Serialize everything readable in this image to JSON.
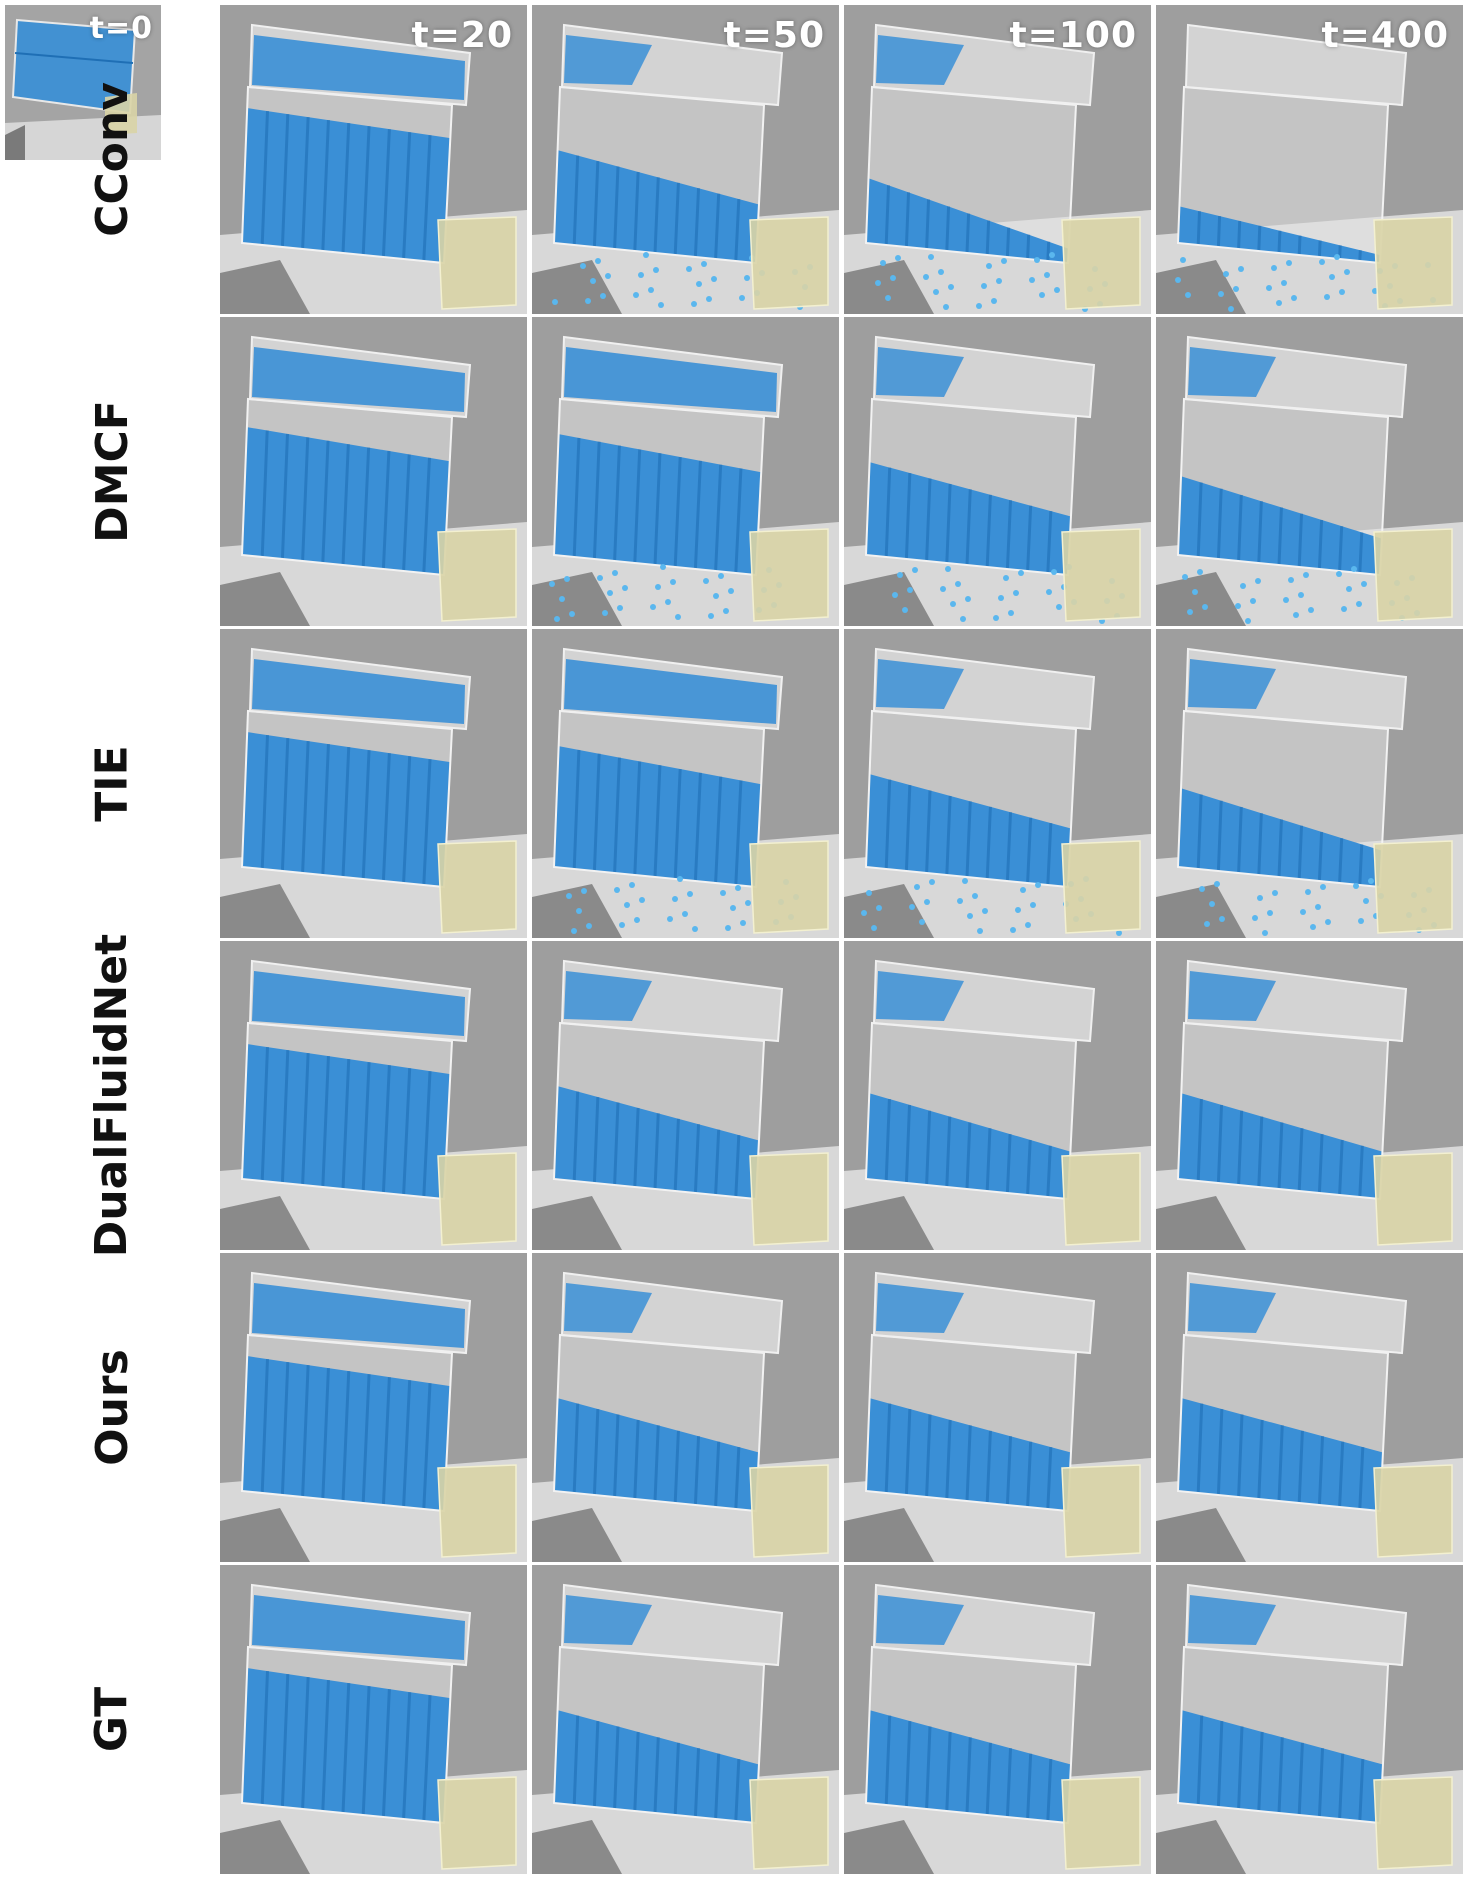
{
  "time_steps": [
    "t=0",
    "t=20",
    "t=50",
    "t=100",
    "t=400"
  ],
  "rows": [
    {
      "method": "CConv",
      "fill": [
        0.85,
        0.55,
        0.35,
        0.15
      ]
    },
    {
      "method": "DMCF",
      "fill": [
        0.8,
        0.75,
        0.55,
        0.45
      ]
    },
    {
      "method": "TIE",
      "fill": [
        0.85,
        0.75,
        0.55,
        0.45
      ]
    },
    {
      "method": "DualFluidNet",
      "fill": [
        0.85,
        0.55,
        0.5,
        0.5
      ]
    },
    {
      "method": "Ours",
      "fill": [
        0.85,
        0.55,
        0.55,
        0.55
      ]
    },
    {
      "method": "GT",
      "fill": [
        0.85,
        0.55,
        0.55,
        0.55
      ]
    }
  ],
  "colors": {
    "fluid": "#3a8fd6",
    "fluid_dark": "#1f6fb5",
    "spray": "#5ab7ee",
    "wall": "#9e9e9e",
    "floor": "#d8d8d8",
    "container": "#e4e4e4",
    "inset": "#d9d4a6"
  }
}
